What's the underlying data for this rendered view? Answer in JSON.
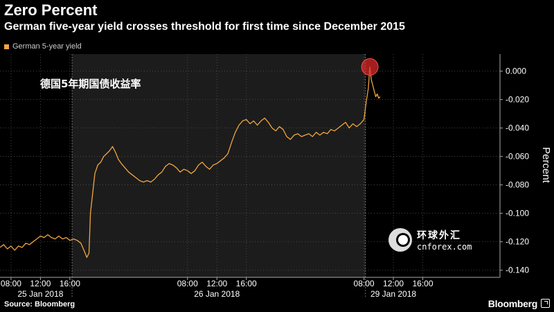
{
  "header": {
    "title": "Zero Percent",
    "subtitle": "German five-year yield crosses threshold for first time since December 2015",
    "legend_label": "German 5-year yield"
  },
  "annotation": {
    "text": "德国5年期国债收益率"
  },
  "watermark": {
    "cn_text": "环球外汇",
    "en_text": "cnforex.com"
  },
  "footer": {
    "source": "Source: Bloomberg",
    "brand": "Bloomberg"
  },
  "colors": {
    "series": "#f0a640",
    "shade": "#1c1c1c",
    "highlight": "#d92a2a"
  },
  "chart_data": {
    "type": "line",
    "title": "Zero Percent",
    "ylabel": "Percent",
    "ylim": [
      -0.145,
      0.012
    ],
    "yticks": [
      0.0,
      -0.02,
      -0.04,
      -0.06,
      -0.08,
      -0.1,
      -0.12,
      -0.14
    ],
    "ytick_labels": [
      "0.000",
      "-0.020",
      "-0.040",
      "-0.060",
      "-0.080",
      "-0.100",
      "-0.120",
      "-0.140"
    ],
    "xlim": [
      6.5,
      74.5
    ],
    "xticks": [
      {
        "t": 8,
        "label": "08:00"
      },
      {
        "t": 12,
        "label": "12:00"
      },
      {
        "t": 16,
        "label": "16:00"
      },
      {
        "t": 32,
        "label": "08:00"
      },
      {
        "t": 36,
        "label": "12:00"
      },
      {
        "t": 40,
        "label": "16:00"
      },
      {
        "t": 56,
        "label": "08:00"
      },
      {
        "t": 60,
        "label": "12:00"
      },
      {
        "t": 64,
        "label": "16:00"
      }
    ],
    "days": [
      {
        "label": "25 Jan 2018",
        "center": 12
      },
      {
        "label": "26 Jan 2018",
        "center": 36
      },
      {
        "label": "29 Jan 2018",
        "center": 60
      }
    ],
    "day_separators": [
      16.3,
      56.2
    ],
    "shaded_range": [
      16.3,
      56.2
    ],
    "highlight_point": {
      "t": 56.8,
      "v": 0.003
    },
    "series": [
      {
        "name": "German 5-year yield",
        "points": [
          [
            6.5,
            -0.124
          ],
          [
            7,
            -0.122
          ],
          [
            7.5,
            -0.125
          ],
          [
            8,
            -0.123
          ],
          [
            8.5,
            -0.126
          ],
          [
            9,
            -0.123
          ],
          [
            9.5,
            -0.124
          ],
          [
            10,
            -0.121
          ],
          [
            10.5,
            -0.122
          ],
          [
            11,
            -0.12
          ],
          [
            11.5,
            -0.118
          ],
          [
            12,
            -0.116
          ],
          [
            12.5,
            -0.117
          ],
          [
            13,
            -0.115
          ],
          [
            13.5,
            -0.117
          ],
          [
            14,
            -0.118
          ],
          [
            14.5,
            -0.116
          ],
          [
            15,
            -0.118
          ],
          [
            15.5,
            -0.117
          ],
          [
            16,
            -0.119
          ],
          [
            16.5,
            -0.118
          ],
          [
            17,
            -0.119
          ],
          [
            17.5,
            -0.121
          ],
          [
            18,
            -0.127
          ],
          [
            18.3,
            -0.131
          ],
          [
            18.6,
            -0.128
          ],
          [
            18.8,
            -0.1
          ],
          [
            19.1,
            -0.086
          ],
          [
            19.4,
            -0.072
          ],
          [
            19.8,
            -0.066
          ],
          [
            20.2,
            -0.064
          ],
          [
            20.6,
            -0.06
          ],
          [
            21,
            -0.058
          ],
          [
            21.4,
            -0.056
          ],
          [
            21.8,
            -0.053
          ],
          [
            22.2,
            -0.057
          ],
          [
            22.6,
            -0.062
          ],
          [
            23,
            -0.065
          ],
          [
            23.5,
            -0.068
          ],
          [
            24,
            -0.071
          ],
          [
            24.5,
            -0.073
          ],
          [
            25,
            -0.075
          ],
          [
            25.5,
            -0.077
          ],
          [
            26,
            -0.078
          ],
          [
            26.5,
            -0.077
          ],
          [
            27,
            -0.078
          ],
          [
            27.5,
            -0.076
          ],
          [
            28,
            -0.073
          ],
          [
            28.5,
            -0.071
          ],
          [
            29,
            -0.067
          ],
          [
            29.5,
            -0.065
          ],
          [
            30,
            -0.066
          ],
          [
            30.5,
            -0.068
          ],
          [
            31,
            -0.071
          ],
          [
            31.5,
            -0.069
          ],
          [
            32,
            -0.07
          ],
          [
            32.5,
            -0.072
          ],
          [
            33,
            -0.07
          ],
          [
            33.5,
            -0.066
          ],
          [
            34,
            -0.064
          ],
          [
            34.5,
            -0.067
          ],
          [
            35,
            -0.069
          ],
          [
            35.5,
            -0.066
          ],
          [
            36,
            -0.065
          ],
          [
            36.5,
            -0.063
          ],
          [
            37,
            -0.061
          ],
          [
            37.5,
            -0.058
          ],
          [
            38,
            -0.05
          ],
          [
            38.5,
            -0.043
          ],
          [
            39,
            -0.038
          ],
          [
            39.5,
            -0.035
          ],
          [
            40,
            -0.034
          ],
          [
            40.5,
            -0.037
          ],
          [
            41,
            -0.035
          ],
          [
            41.5,
            -0.038
          ],
          [
            42,
            -0.035
          ],
          [
            42.5,
            -0.033
          ],
          [
            43,
            -0.036
          ],
          [
            43.5,
            -0.04
          ],
          [
            44,
            -0.042
          ],
          [
            44.5,
            -0.039
          ],
          [
            45,
            -0.041
          ],
          [
            45.5,
            -0.046
          ],
          [
            46,
            -0.048
          ],
          [
            46.5,
            -0.045
          ],
          [
            47,
            -0.044
          ],
          [
            47.5,
            -0.046
          ],
          [
            48,
            -0.045
          ],
          [
            48.5,
            -0.044
          ],
          [
            49,
            -0.046
          ],
          [
            49.5,
            -0.043
          ],
          [
            50,
            -0.045
          ],
          [
            50.5,
            -0.043
          ],
          [
            51,
            -0.044
          ],
          [
            51.5,
            -0.041
          ],
          [
            52,
            -0.042
          ],
          [
            52.5,
            -0.04
          ],
          [
            53,
            -0.038
          ],
          [
            53.5,
            -0.036
          ],
          [
            54,
            -0.04
          ],
          [
            54.5,
            -0.037
          ],
          [
            55,
            -0.039
          ],
          [
            55.5,
            -0.037
          ],
          [
            56,
            -0.034
          ],
          [
            56.3,
            -0.022
          ],
          [
            56.6,
            -0.012
          ],
          [
            56.8,
            0.003
          ],
          [
            57.0,
            -0.006
          ],
          [
            57.2,
            -0.01
          ],
          [
            57.4,
            -0.014
          ],
          [
            57.6,
            -0.018
          ],
          [
            57.8,
            -0.016
          ],
          [
            58.0,
            -0.019
          ],
          [
            58.2,
            -0.018
          ]
        ]
      }
    ]
  }
}
